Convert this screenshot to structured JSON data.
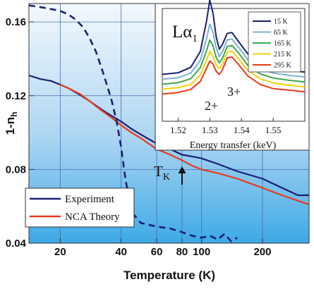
{
  "chart_data": [
    {
      "type": "line",
      "xlabel": "Temperature (K)",
      "ylabel": "1-n",
      "ylabel_sub": "h",
      "xscale": "log",
      "xlim": [
        14,
        340
      ],
      "ylim": [
        0.04,
        0.17
      ],
      "xticks": [
        20,
        40,
        60,
        80,
        100,
        200
      ],
      "yticks": [
        0.04,
        0.08,
        0.12,
        0.16
      ],
      "ytick_labels": [
        "0.04",
        "0.08",
        "0.12",
        "0.16"
      ],
      "grid": true,
      "legend_position": "bottom-left",
      "annotation": {
        "text": "T",
        "sub": "K",
        "arrow": "up"
      },
      "colors": {
        "experiment": "#1c1f74",
        "theory": "#e8391c",
        "dashed": "#1c1f74"
      },
      "series": [
        {
          "name": "Experiment",
          "style": "solid",
          "x": [
            14,
            16,
            18,
            20,
            22,
            25,
            28,
            32,
            36,
            40,
            45,
            50,
            60,
            70,
            80,
            90,
            100,
            120,
            150,
            200,
            250,
            300,
            340
          ],
          "y": [
            0.131,
            0.129,
            0.128,
            0.126,
            0.124,
            0.1205,
            0.117,
            0.1125,
            0.109,
            0.106,
            0.102,
            0.099,
            0.094,
            0.091,
            0.088,
            0.087,
            0.086,
            0.083,
            0.079,
            0.075,
            0.07,
            0.066,
            0.066
          ]
        },
        {
          "name": "NCA Theory",
          "style": "solid",
          "x": [
            20,
            22,
            25,
            28,
            32,
            36,
            40,
            45,
            50,
            60,
            70,
            80,
            90,
            100,
            120,
            150,
            200,
            250,
            300,
            340
          ],
          "y": [
            0.126,
            0.124,
            0.121,
            0.117,
            0.112,
            0.108,
            0.104,
            0.1,
            0.097,
            0.091,
            0.088,
            0.085,
            0.082,
            0.08,
            0.078,
            0.075,
            0.07,
            0.066,
            0.063,
            0.061
          ]
        },
        {
          "style": "dashed",
          "x": [
            14,
            16,
            18,
            20,
            22,
            24,
            26,
            28,
            30,
            32,
            34,
            36,
            38,
            40,
            42,
            45,
            50,
            60,
            70,
            80,
            90,
            100,
            110,
            120,
            130,
            140,
            150
          ],
          "y": [
            0.169,
            0.168,
            0.167,
            0.166,
            0.164,
            0.161,
            0.157,
            0.151,
            0.144,
            0.135,
            0.126,
            0.117,
            0.106,
            0.092,
            0.075,
            0.057,
            0.051,
            0.049,
            0.048,
            0.046,
            0.044,
            0.043,
            0.044,
            0.042,
            0.045,
            0.041,
            0.043
          ]
        }
      ]
    },
    {
      "type": "line",
      "xlabel": "Energy transfer (keV)",
      "xlim": [
        1.515,
        1.56
      ],
      "xticks": [
        1.52,
        1.53,
        1.54,
        1.55
      ],
      "xtick_labels": [
        "1.52",
        "1.53",
        "1.54",
        "1.55"
      ],
      "label": "Lα",
      "label_sub": "1",
      "peak_labels": [
        "2+",
        "3+"
      ],
      "legend_position": "top-right",
      "series": [
        {
          "name": "15 K",
          "color": "#1c1f74",
          "offset": 4,
          "x": [
            1.515,
            1.52,
            1.524,
            1.527,
            1.529,
            1.53,
            1.531,
            1.532,
            1.533,
            1.534,
            1.5355,
            1.537,
            1.539,
            1.542,
            1.546,
            1.55,
            1.555,
            1.56
          ],
          "y": [
            0.04,
            0.06,
            0.13,
            0.33,
            0.72,
            0.98,
            0.82,
            0.52,
            0.36,
            0.42,
            0.56,
            0.57,
            0.46,
            0.3,
            0.18,
            0.12,
            0.09,
            0.07
          ]
        },
        {
          "name": "65 K",
          "color": "#7fb1d3",
          "offset": 3,
          "x": [
            1.515,
            1.52,
            1.524,
            1.527,
            1.529,
            1.53,
            1.531,
            1.532,
            1.533,
            1.534,
            1.5355,
            1.537,
            1.539,
            1.542,
            1.546,
            1.55,
            1.555,
            1.56
          ],
          "y": [
            0.04,
            0.06,
            0.12,
            0.28,
            0.56,
            0.74,
            0.64,
            0.44,
            0.33,
            0.39,
            0.54,
            0.55,
            0.45,
            0.29,
            0.17,
            0.12,
            0.09,
            0.07
          ]
        },
        {
          "name": "165 K",
          "color": "#3aa84f",
          "offset": 2,
          "x": [
            1.515,
            1.52,
            1.524,
            1.527,
            1.529,
            1.53,
            1.531,
            1.532,
            1.533,
            1.534,
            1.5355,
            1.537,
            1.539,
            1.542,
            1.546,
            1.55,
            1.555,
            1.56
          ],
          "y": [
            0.04,
            0.06,
            0.11,
            0.25,
            0.47,
            0.6,
            0.53,
            0.38,
            0.31,
            0.37,
            0.52,
            0.53,
            0.44,
            0.28,
            0.17,
            0.12,
            0.09,
            0.07
          ]
        },
        {
          "name": "215 K",
          "color": "#f2d20a",
          "offset": 1,
          "x": [
            1.515,
            1.52,
            1.524,
            1.527,
            1.529,
            1.53,
            1.531,
            1.532,
            1.533,
            1.534,
            1.5355,
            1.537,
            1.539,
            1.542,
            1.546,
            1.55,
            1.555,
            1.56
          ],
          "y": [
            0.04,
            0.06,
            0.1,
            0.22,
            0.41,
            0.52,
            0.46,
            0.35,
            0.3,
            0.36,
            0.51,
            0.52,
            0.43,
            0.28,
            0.17,
            0.12,
            0.09,
            0.07
          ]
        },
        {
          "name": "295 K",
          "color": "#e8391c",
          "offset": 0,
          "x": [
            1.515,
            1.52,
            1.524,
            1.527,
            1.529,
            1.53,
            1.531,
            1.532,
            1.533,
            1.534,
            1.5355,
            1.537,
            1.539,
            1.542,
            1.546,
            1.55,
            1.555,
            1.56
          ],
          "y": [
            0.04,
            0.06,
            0.1,
            0.2,
            0.37,
            0.46,
            0.42,
            0.33,
            0.29,
            0.35,
            0.5,
            0.51,
            0.42,
            0.27,
            0.16,
            0.11,
            0.09,
            0.07
          ]
        }
      ]
    }
  ]
}
